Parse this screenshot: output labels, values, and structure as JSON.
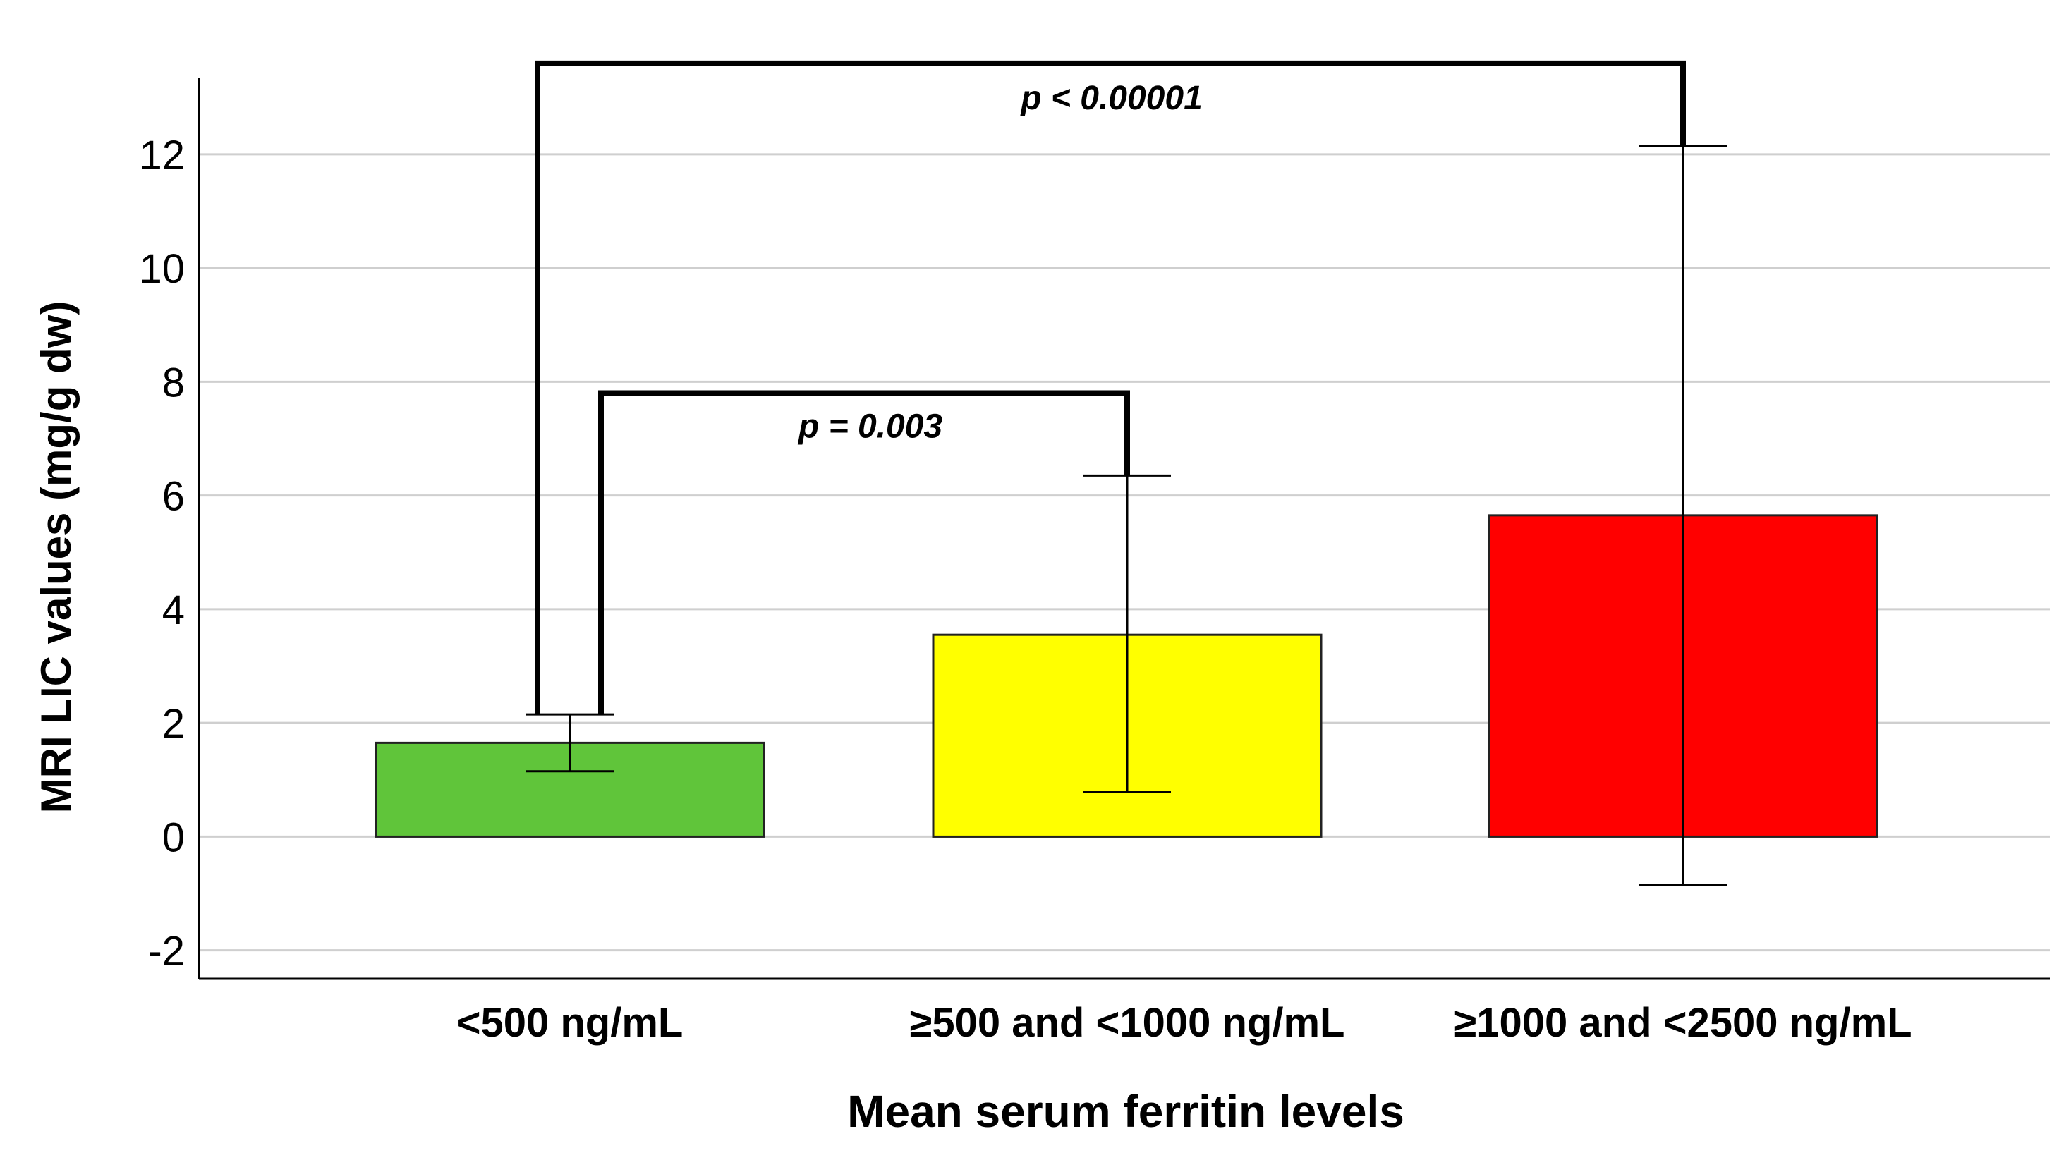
{
  "chart_data": {
    "type": "bar",
    "categories": [
      "<500 ng/mL",
      "≥500 and <1000 ng/mL",
      "≥1000 and <2500 ng/mL"
    ],
    "values": [
      1.65,
      3.55,
      5.65
    ],
    "error_bars": [
      {
        "low": 1.15,
        "high": 2.15
      },
      {
        "low": 0.78,
        "high": 6.35
      },
      {
        "low": -0.85,
        "high": 12.15
      }
    ],
    "colors": [
      "#60c53a",
      "#ffff00",
      "#ff0000"
    ],
    "xlabel": "Mean serum ferritin levels",
    "ylabel": "MRI LIC values (mg/g dw)",
    "ylim": [
      -2.5,
      13.35
    ],
    "yticks": [
      -2,
      0,
      2,
      4,
      6,
      8,
      10,
      12
    ],
    "ytick_labels": [
      "-2",
      "0",
      "2",
      "4",
      "6",
      "8",
      "10",
      "12"
    ],
    "grid": true,
    "significance": [
      {
        "from": 0,
        "to": 2,
        "label": "p < 0.00001",
        "height": 13.6
      },
      {
        "from": 0,
        "to": 1,
        "label": "p = 0.003",
        "height": 7.8
      }
    ]
  }
}
